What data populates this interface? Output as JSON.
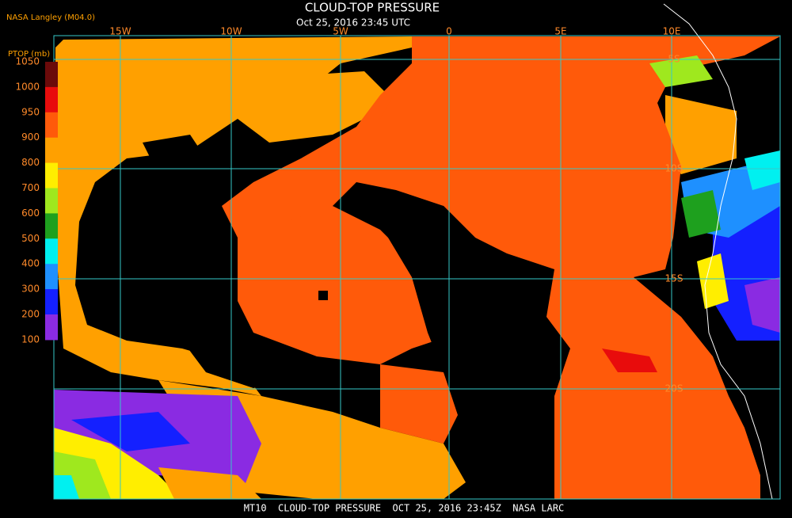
{
  "header": {
    "source": "NASA Langley (M04.0)",
    "title": "CLOUD-TOP PRESSURE",
    "subtitle": "Oct 25, 2016 23:45 UTC"
  },
  "colorbar": {
    "label": "PTOP (mb)",
    "ticks": [
      1050,
      1000,
      950,
      900,
      800,
      700,
      600,
      500,
      400,
      300,
      200,
      100
    ],
    "colors": [
      "#6b0a0a",
      "#e80c0c",
      "#ff5a0a",
      "#ffa000",
      "#ffee00",
      "#9fe81e",
      "#1ea01e",
      "#00f0f0",
      "#1e90ff",
      "#1420ff",
      "#8a2be2"
    ]
  },
  "longitudes": [
    "15W",
    "10W",
    "5W",
    "0",
    "5E",
    "10E"
  ],
  "latitudes": [
    "5S",
    "10S",
    "15S",
    "20S"
  ],
  "footer": "MT10  CLOUD-TOP PRESSURE  OCT 25, 2016 23:45Z  NASA LARC"
}
